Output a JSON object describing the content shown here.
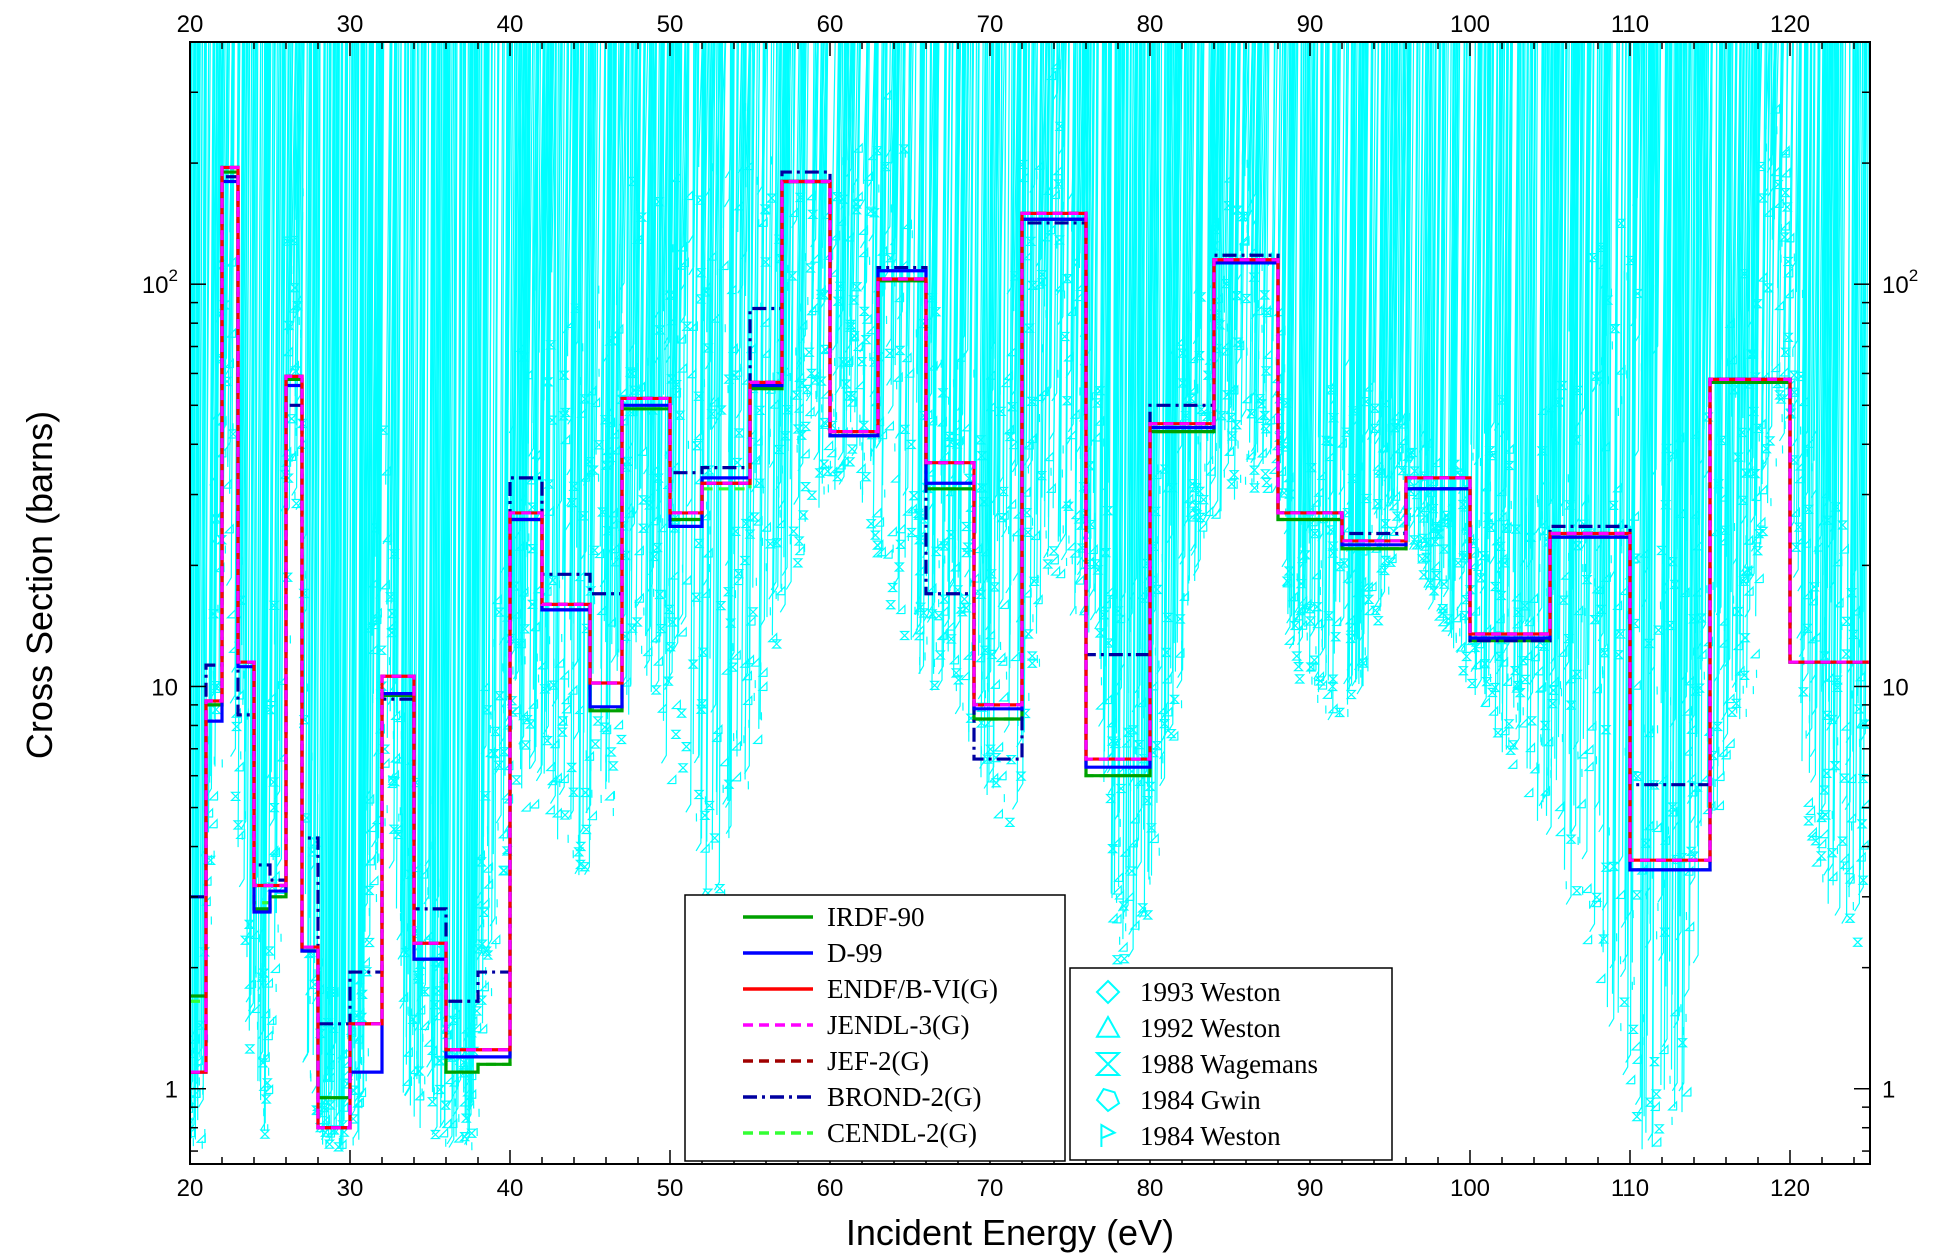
{
  "chart_data": {
    "type": "line",
    "xlabel": "Incident Energy (eV)",
    "ylabel": "Cross Section (barns)",
    "xlim": [
      20,
      125
    ],
    "ylim": [
      0.65,
      400
    ],
    "yscale": "log",
    "grid": false,
    "x_ticks": [
      "20",
      "30",
      "40",
      "50",
      "60",
      "70",
      "80",
      "90",
      "100",
      "110",
      "120"
    ],
    "x_tick_values": [
      20,
      30,
      40,
      50,
      60,
      70,
      80,
      90,
      100,
      110,
      120
    ],
    "y_ticks": [
      {
        "value": 1,
        "base": "1",
        "exp": ""
      },
      {
        "value": 10,
        "base": "10",
        "exp": ""
      },
      {
        "value": 100,
        "base": "10",
        "exp": "2"
      }
    ],
    "legend_evaluated": {
      "placement": "bottom-center",
      "entries": [
        {
          "name": "IRDF-90",
          "color": "#00a000",
          "style": "solid"
        },
        {
          "name": "D-99",
          "color": "#0000ff",
          "style": "solid"
        },
        {
          "name": "ENDF/B-VI(G)",
          "color": "#ff0000",
          "style": "solid"
        },
        {
          "name": "JENDL-3(G)",
          "color": "#ff00ff",
          "style": "dash"
        },
        {
          "name": "JEF-2(G)",
          "color": "#a00000",
          "style": "dash"
        },
        {
          "name": "BROND-2(G)",
          "color": "#0000a0",
          "style": "dashdot"
        },
        {
          "name": "CENDL-2(G)",
          "color": "#33ff33",
          "style": "dash"
        }
      ]
    },
    "legend_measured": {
      "placement": "bottom-center-right",
      "entries": [
        {
          "name": "1993 Weston",
          "marker": "diamond"
        },
        {
          "name": "1992 Weston",
          "marker": "triangle"
        },
        {
          "name": "1988 Wagemans",
          "marker": "hourglass"
        },
        {
          "name": "1984 Gwin",
          "marker": "pentagon"
        },
        {
          "name": "1984 Weston",
          "marker": "flag"
        }
      ]
    },
    "measured_color": "#00ffff",
    "measured_resonance_envelope": {
      "x": [
        20,
        21,
        22,
        22.5,
        23,
        24,
        25,
        26,
        26.8,
        27.5,
        28.5,
        30,
        31,
        32.5,
        33.5,
        35,
        36,
        37,
        38,
        40,
        41.5,
        43,
        45,
        47,
        48.5,
        50,
        51.5,
        53,
        55.5,
        57.5,
        60,
        62,
        64,
        66,
        68,
        70,
        72,
        74,
        76,
        78,
        80,
        82,
        84,
        86,
        88,
        89,
        90,
        92,
        94,
        96,
        98,
        100,
        102,
        104,
        106,
        108,
        110,
        111,
        112,
        113,
        114,
        116,
        118,
        119,
        120,
        121,
        122,
        125
      ],
      "ymax": [
        0.9,
        2,
        60,
        400,
        30,
        5,
        3,
        30,
        300,
        10,
        2,
        1.6,
        2,
        50,
        8,
        6,
        3,
        1.5,
        1.5,
        30,
        130,
        120,
        110,
        170,
        180,
        170,
        200,
        250,
        300,
        250,
        160,
        340,
        420,
        110,
        80,
        60,
        170,
        400,
        110,
        15,
        30,
        80,
        130,
        220,
        120,
        40,
        30,
        80,
        60,
        50,
        40,
        40,
        60,
        30,
        80,
        120,
        200,
        200,
        100,
        50,
        40,
        80,
        120,
        400,
        300,
        80,
        40,
        20
      ],
      "ymin": [
        0.7,
        0.7,
        5,
        30,
        5,
        1,
        0.7,
        2,
        30,
        1,
        0.7,
        0.7,
        0.7,
        5,
        1,
        0.7,
        0.7,
        0.7,
        0.7,
        3,
        5,
        4,
        3,
        5,
        12,
        6,
        4,
        2,
        6,
        15,
        30,
        30,
        15,
        10,
        9,
        5,
        4,
        15,
        15,
        2,
        2,
        8,
        25,
        30,
        30,
        12,
        9,
        8,
        10,
        25,
        15,
        10,
        7,
        5,
        3,
        2,
        1,
        0.7,
        0.7,
        0.7,
        1,
        5,
        10,
        30,
        40,
        5,
        3,
        2
      ]
    },
    "series": [
      {
        "name": "IRDF-90",
        "color": "#00a000",
        "style": "solid",
        "edges": [
          20,
          21,
          22,
          23,
          24,
          25,
          26,
          27,
          28,
          30,
          32,
          34,
          36,
          38,
          40,
          42,
          45,
          47,
          50,
          52,
          55,
          57,
          60,
          63,
          66,
          69,
          72,
          76,
          80,
          84,
          88,
          92,
          96,
          100,
          105,
          110,
          115,
          120,
          125
        ],
        "values": [
          1.7,
          9.0,
          190,
          11.5,
          2.8,
          3.0,
          58,
          2.2,
          0.95,
          1.45,
          9.5,
          2.1,
          1.1,
          1.15,
          26,
          15.5,
          8.7,
          49,
          26,
          32,
          55,
          180,
          42,
          102,
          31,
          8.3,
          145,
          6.0,
          43,
          113,
          26,
          22,
          31,
          13,
          23.5,
          3.5,
          57,
          11.5
        ]
      },
      {
        "name": "D-99",
        "color": "#0000ff",
        "style": "solid",
        "edges": [
          20,
          21,
          22,
          23,
          24,
          25,
          26,
          27,
          28,
          30,
          32,
          34,
          36,
          38,
          40,
          42,
          45,
          47,
          50,
          52,
          55,
          57,
          60,
          63,
          66,
          69,
          72,
          76,
          80,
          84,
          88,
          92,
          96,
          100,
          105,
          110,
          115,
          120,
          125
        ],
        "values": [
          1.1,
          8.2,
          180,
          11.2,
          2.75,
          3.1,
          56,
          2.2,
          0.8,
          1.1,
          9.6,
          2.1,
          1.2,
          1.2,
          26,
          15.5,
          8.9,
          50,
          25,
          33,
          56,
          180,
          42,
          108,
          32,
          8.8,
          145,
          6.3,
          44,
          113,
          27,
          22.5,
          31,
          13.2,
          23.5,
          3.5,
          58,
          11.5
        ]
      },
      {
        "name": "ENDF/B-VI(G)",
        "color": "#ff0000",
        "style": "solid",
        "edges": [
          20,
          21,
          22,
          23,
          24,
          25,
          26,
          27,
          28,
          30,
          32,
          34,
          36,
          38,
          40,
          42,
          45,
          47,
          50,
          52,
          55,
          57,
          60,
          63,
          66,
          69,
          72,
          76,
          80,
          84,
          88,
          92,
          96,
          100,
          105,
          110,
          115,
          120,
          125
        ],
        "values": [
          1.1,
          9.2,
          195,
          11.5,
          3.2,
          3.2,
          59,
          2.25,
          0.8,
          1.45,
          10.6,
          2.3,
          1.25,
          1.25,
          27,
          16,
          10.2,
          52,
          27,
          32,
          57,
          180,
          43,
          103,
          36,
          9.0,
          150,
          6.6,
          45,
          115,
          27,
          23,
          33,
          13.5,
          24,
          3.7,
          58,
          11.5
        ]
      },
      {
        "name": "JENDL-3(G)",
        "color": "#ff00ff",
        "style": "dash",
        "edges": [
          20,
          21,
          22,
          23,
          24,
          25,
          26,
          27,
          28,
          30,
          32,
          34,
          36,
          38,
          40,
          42,
          45,
          47,
          50,
          52,
          55,
          57,
          60,
          63,
          66,
          69,
          72,
          76,
          80,
          84,
          88,
          92,
          96,
          100,
          105,
          110,
          115,
          120,
          125
        ],
        "values": [
          1.1,
          9.2,
          195,
          11.5,
          3.2,
          3.2,
          59,
          2.25,
          0.8,
          1.45,
          10.6,
          2.3,
          1.25,
          1.25,
          27,
          16,
          10.2,
          52,
          27,
          32,
          57,
          180,
          43,
          103,
          36,
          9.0,
          150,
          6.6,
          45,
          115,
          27,
          23,
          33,
          13.5,
          24,
          3.7,
          58,
          11.5
        ]
      },
      {
        "name": "JEF-2(G)",
        "color": "#a00000",
        "style": "dash",
        "edges": [
          20,
          21,
          22,
          23,
          24,
          25,
          26,
          27,
          28,
          30,
          32,
          34,
          36,
          38,
          40,
          42,
          45,
          47,
          50,
          52,
          55,
          57,
          60,
          63,
          66,
          69,
          72,
          76,
          80,
          84,
          88,
          92,
          96,
          100,
          105,
          110,
          115,
          120,
          125
        ],
        "values": [
          1.1,
          9.2,
          195,
          11.5,
          3.2,
          3.2,
          59,
          2.25,
          0.8,
          1.45,
          10.6,
          2.3,
          1.25,
          1.25,
          27,
          16,
          10.2,
          52,
          27,
          32,
          57,
          180,
          43,
          103,
          36,
          9.0,
          150,
          6.6,
          45,
          115,
          27,
          23,
          33,
          13.5,
          24,
          3.7,
          58,
          11.5
        ]
      },
      {
        "name": "BROND-2(G)",
        "color": "#0000a0",
        "style": "dashdot",
        "edges": [
          20,
          21,
          22,
          23,
          24,
          25,
          26,
          27,
          28,
          30,
          32,
          34,
          36,
          38,
          40,
          42,
          45,
          47,
          50,
          52,
          55,
          57,
          60,
          63,
          66,
          69,
          72,
          76,
          80,
          84,
          88,
          92,
          96,
          100,
          105,
          110,
          115,
          120,
          125
        ],
        "values": [
          3.0,
          11.3,
          185,
          8.5,
          3.6,
          3.3,
          50,
          4.2,
          1.45,
          1.95,
          9.3,
          2.8,
          1.65,
          1.95,
          33,
          19,
          17,
          52,
          34,
          35,
          87,
          190,
          43,
          110,
          17,
          6.6,
          142,
          12,
          50,
          118,
          27,
          24,
          31,
          13,
          25,
          5.7,
          58,
          11.5
        ]
      },
      {
        "name": "CENDL-2(G)",
        "color": "#33ff33",
        "style": "dash",
        "edges": [
          20,
          21,
          22,
          23,
          24,
          25,
          26,
          27,
          28,
          30,
          32,
          34,
          36,
          38,
          40,
          42,
          45,
          47,
          50,
          52,
          55,
          57,
          60,
          63,
          66,
          69,
          72,
          76,
          80,
          84,
          88,
          92,
          96,
          100,
          105,
          110,
          115,
          120,
          125
        ],
        "values": [
          1.65,
          9.0,
          190,
          11.5,
          2.9,
          3.0,
          58,
          2.2,
          0.95,
          1.45,
          9.6,
          2.1,
          1.1,
          1.15,
          26,
          15.5,
          8.8,
          49,
          26,
          31,
          55,
          180,
          42,
          102,
          31,
          8.3,
          145,
          6.0,
          43,
          113,
          26,
          22,
          31,
          13,
          23.5,
          3.5,
          57,
          11.5
        ]
      }
    ]
  }
}
